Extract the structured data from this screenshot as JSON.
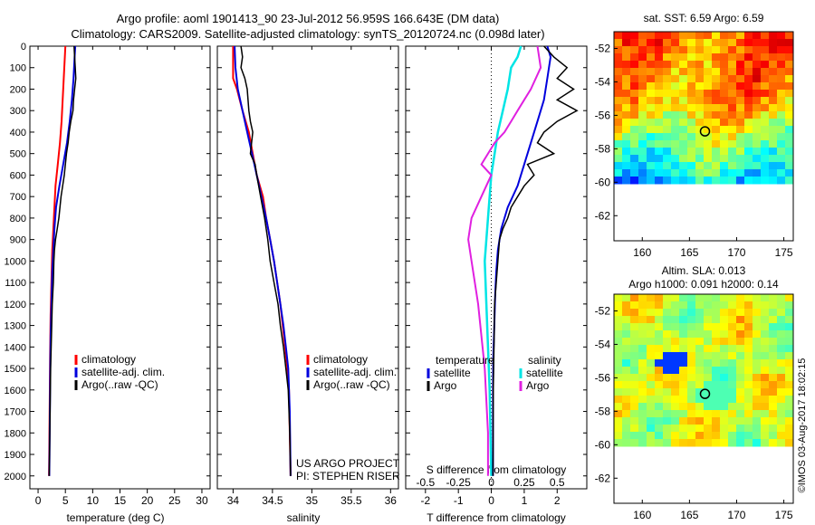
{
  "header": {
    "line1": "Argo profile: aoml 1901413_90 23-Jul-2012 56.959S 166.643E (DM data)",
    "line2": "Climatology: CARS2009. Satellite-adjusted climatology: synTS_20120724.nc (0.098d later)"
  },
  "colors": {
    "climatology": "#ff0000",
    "satellite": "#0000dd",
    "argo": "#000000",
    "s_satellite": "#00e5e5",
    "s_argo": "#e020e0"
  },
  "chart_data": [
    {
      "type": "line",
      "xlabel": "temperature (deg C)",
      "ylabel": "",
      "xlim": [
        -1.5,
        31.5
      ],
      "ylim": [
        2060,
        0
      ],
      "xticks": [
        0,
        5,
        10,
        15,
        20,
        25,
        30
      ],
      "yticks": [
        0,
        100,
        200,
        300,
        400,
        500,
        600,
        700,
        800,
        900,
        1000,
        1100,
        1200,
        1300,
        1400,
        1500,
        1600,
        1700,
        1800,
        1900,
        2000
      ],
      "legend": [
        "climatology",
        "satellite-adj. clim.",
        "Argo(..raw -QC)"
      ],
      "series": [
        {
          "name": "climatology",
          "x": [
            5.0,
            4.9,
            4.7,
            4.5,
            4.3,
            4.0,
            3.6,
            3.2,
            3.0,
            2.8,
            2.6,
            2.5,
            2.4,
            2.3,
            2.25,
            2.2,
            2.15,
            2.1,
            2.05,
            2.0
          ],
          "y": [
            0,
            50,
            150,
            250,
            350,
            450,
            550,
            650,
            750,
            850,
            950,
            1050,
            1150,
            1250,
            1350,
            1450,
            1600,
            1750,
            1900,
            2000
          ]
        },
        {
          "name": "satellite-adj. clim.",
          "x": [
            6.8,
            6.7,
            6.5,
            6.2,
            5.8,
            5.3,
            4.6,
            3.9,
            3.3,
            3.0,
            2.8,
            2.6,
            2.5,
            2.4,
            2.3,
            2.25,
            2.2,
            2.15,
            2.1,
            2.05
          ],
          "y": [
            0,
            50,
            150,
            250,
            350,
            450,
            550,
            650,
            750,
            850,
            950,
            1050,
            1150,
            1250,
            1350,
            1450,
            1600,
            1750,
            1900,
            2000
          ]
        },
        {
          "name": "Argo(..raw -QC)",
          "x": [
            6.6,
            6.7,
            6.8,
            6.9,
            6.7,
            6.5,
            6.4,
            6.0,
            5.7,
            5.5,
            5.2,
            5.0,
            4.8,
            4.5,
            4.2,
            4.0,
            3.8,
            3.5,
            3.2,
            3.0,
            2.9,
            2.8,
            2.6,
            2.5,
            2.4,
            2.3,
            2.25,
            2.2,
            2.15,
            2.1,
            2.05
          ],
          "y": [
            0,
            50,
            100,
            150,
            200,
            250,
            300,
            350,
            400,
            450,
            500,
            550,
            600,
            650,
            700,
            750,
            800,
            850,
            900,
            950,
            1000,
            1100,
            1200,
            1300,
            1400,
            1500,
            1600,
            1700,
            1800,
            1900,
            2000
          ]
        }
      ]
    },
    {
      "type": "line",
      "xlabel": "salinity",
      "ylabel": "",
      "xlim": [
        33.8,
        36.1
      ],
      "ylim": [
        2060,
        0
      ],
      "xticks": [
        34,
        34.5,
        35,
        35.5,
        36
      ],
      "legend": [
        "climatology",
        "satellite-adj. clim.",
        "Argo(..raw -QC)"
      ],
      "annotation": [
        "US ARGO PROJECT",
        "PI: STEPHEN RISER"
      ],
      "series": [
        {
          "name": "climatology",
          "x": [
            34.0,
            34.0,
            34.05,
            34.12,
            34.2,
            34.25,
            34.3,
            34.38,
            34.42,
            34.47,
            34.52,
            34.56,
            34.6,
            34.63,
            34.66,
            34.69,
            34.71,
            34.72,
            34.73
          ],
          "y": [
            0,
            150,
            200,
            300,
            400,
            500,
            600,
            700,
            800,
            900,
            1000,
            1100,
            1200,
            1300,
            1400,
            1500,
            1600,
            1800,
            2000
          ]
        },
        {
          "name": "satellite-adj. clim.",
          "x": [
            34.02,
            34.03,
            34.06,
            34.12,
            34.18,
            34.24,
            34.3,
            34.36,
            34.42,
            34.47,
            34.52,
            34.56,
            34.6,
            34.64,
            34.67,
            34.7,
            34.72,
            34.73
          ],
          "y": [
            0,
            100,
            200,
            300,
            400,
            500,
            600,
            700,
            800,
            900,
            1000,
            1100,
            1200,
            1300,
            1400,
            1500,
            1700,
            2000
          ]
        },
        {
          "name": "Argo(..raw -QC)",
          "x": [
            34.1,
            34.12,
            34.1,
            34.15,
            34.18,
            34.2,
            34.22,
            34.25,
            34.22,
            34.28,
            34.3,
            34.35,
            34.4,
            34.44,
            34.47,
            34.52,
            34.57,
            34.6,
            34.64,
            34.67,
            34.7,
            34.72,
            34.73
          ],
          "y": [
            0,
            50,
            100,
            150,
            200,
            300,
            350,
            400,
            500,
            550,
            600,
            700,
            800,
            900,
            1000,
            1100,
            1200,
            1300,
            1400,
            1500,
            1600,
            1800,
            2000
          ]
        }
      ]
    },
    {
      "type": "line",
      "xlabel": "T difference from climatology",
      "xlabel2": "S difference from climatology",
      "xlim": [
        -2.6,
        2.9
      ],
      "ylim": [
        2060,
        0
      ],
      "xticks_T": [
        -2,
        -1,
        0,
        1,
        2
      ],
      "xticks_S": [
        {
          "label": "-0.5",
          "x": -2
        },
        {
          "label": "-0.25",
          "x": -1
        },
        {
          "label": "0",
          "x": 0
        },
        {
          "label": "0.25",
          "x": 1
        },
        {
          "label": "0.5",
          "x": 2
        }
      ],
      "legend_temperature": {
        "title": "temperature",
        "items": [
          "satellite",
          "Argo"
        ]
      },
      "legend_salinity": {
        "title": "salinity",
        "items": [
          "satellite",
          "Argo"
        ]
      },
      "series": [
        {
          "name": "T satellite",
          "x": [
            1.7,
            1.8,
            1.7,
            1.6,
            1.4,
            1.2,
            1.0,
            0.8,
            0.5,
            0.3,
            0.2,
            0.15,
            0.12,
            0.1,
            0.08,
            0.06,
            0.05,
            0.05,
            0.05,
            0.05
          ],
          "y": [
            0,
            50,
            150,
            250,
            350,
            450,
            550,
            650,
            750,
            850,
            950,
            1050,
            1150,
            1250,
            1350,
            1450,
            1600,
            1750,
            1900,
            2000
          ]
        },
        {
          "name": "T Argo",
          "x": [
            1.6,
            1.9,
            2.3,
            2.0,
            2.5,
            2.0,
            2.6,
            2.0,
            1.6,
            1.4,
            1.9,
            1.1,
            1.3,
            1.0,
            0.8,
            0.6,
            0.5,
            0.35,
            0.25,
            0.2,
            0.15,
            0.1,
            0.08,
            0.06,
            0.05
          ],
          "y": [
            0,
            50,
            100,
            150,
            200,
            250,
            300,
            350,
            400,
            450,
            500,
            550,
            600,
            650,
            700,
            750,
            800,
            850,
            900,
            1000,
            1100,
            1200,
            1400,
            1600,
            2000
          ]
        },
        {
          "name": "S satellite",
          "x": [
            0.9,
            0.8,
            0.6,
            0.5,
            0.35,
            0.2,
            0.1,
            0.0,
            -0.05,
            -0.1,
            -0.15,
            -0.2,
            -0.15,
            -0.1,
            -0.05,
            0.0
          ],
          "y": [
            0,
            50,
            100,
            200,
            300,
            400,
            500,
            600,
            700,
            800,
            900,
            1000,
            1200,
            1400,
            1600,
            2000
          ]
        },
        {
          "name": "S Argo",
          "x": [
            1.4,
            1.5,
            1.2,
            1.0,
            0.8,
            0.6,
            0.4,
            0.1,
            -0.3,
            0.0,
            -0.3,
            -0.6,
            -0.7,
            -0.6,
            -0.4,
            -0.2,
            -0.1,
            -0.1
          ],
          "y": [
            0,
            100,
            200,
            250,
            300,
            350,
            400,
            450,
            550,
            600,
            700,
            800,
            900,
            1000,
            1200,
            1500,
            1800,
            2000
          ]
        }
      ]
    },
    {
      "type": "heatmap",
      "title": "sat. SST: 6.59 Argo: 6.59",
      "xticks": [
        160,
        165,
        170,
        175
      ],
      "yticks": [
        -52,
        -54,
        -56,
        -58,
        -60,
        -62
      ],
      "xlim": [
        157,
        176
      ],
      "ylim": [
        -63.5,
        -51
      ],
      "data_ylim": [
        -60,
        -51
      ],
      "marker": {
        "lon": 166.643,
        "lat": -56.959
      },
      "palette": "jet"
    },
    {
      "type": "heatmap",
      "title": "Altim. SLA: 0.013",
      "subtitle": "Argo h1000: 0.091 h2000: 0.14",
      "xticks": [
        160,
        165,
        170,
        175
      ],
      "yticks": [
        -52,
        -54,
        -56,
        -58,
        -60,
        -62
      ],
      "xlim": [
        157,
        176
      ],
      "ylim": [
        -63.5,
        -51
      ],
      "data_ylim": [
        -60,
        -51
      ],
      "marker": {
        "lon": 166.643,
        "lat": -56.959
      },
      "palette": "jet"
    }
  ],
  "watermark": "©IMOS 03-Aug-2017 18:02:15"
}
